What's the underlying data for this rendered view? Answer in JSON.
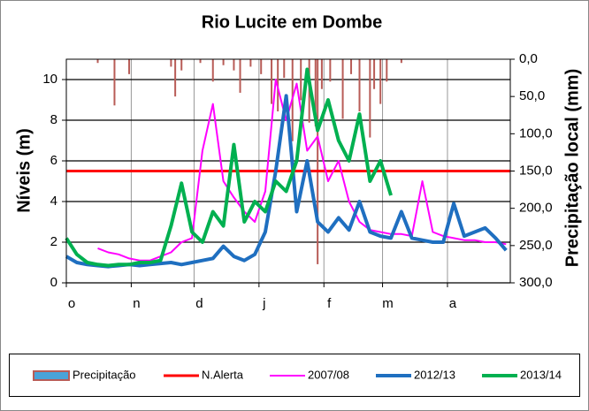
{
  "chart_data": {
    "type": "line",
    "title": "Rio Lucite em Dombe",
    "y_label": "Níveis (m)",
    "y2_label": "Precipitação local  (mm)",
    "xlim": [
      0,
      212
    ],
    "xticks": [
      {
        "value": 0,
        "label": "o"
      },
      {
        "value": 31,
        "label": "n"
      },
      {
        "value": 61,
        "label": "d"
      },
      {
        "value": 92,
        "label": "j"
      },
      {
        "value": 123,
        "label": "f"
      },
      {
        "value": 151,
        "label": "m"
      },
      {
        "value": 182,
        "label": "a"
      }
    ],
    "ylim": [
      0,
      11
    ],
    "yticks": [
      0,
      2,
      4,
      6,
      8,
      10
    ],
    "y2lim": [
      300,
      0
    ],
    "y2ticks": [
      {
        "value": 0,
        "label": "0,0"
      },
      {
        "value": 50,
        "label": "50,0"
      },
      {
        "value": 100,
        "label": "100,0"
      },
      {
        "value": 150,
        "label": "150,0"
      },
      {
        "value": 200,
        "label": "200,0"
      },
      {
        "value": 250,
        "label": "250,0"
      },
      {
        "value": 300,
        "label": "300,0"
      }
    ],
    "grid": true,
    "x": [
      0,
      5,
      10,
      15,
      20,
      25,
      30,
      35,
      40,
      45,
      50,
      55,
      60,
      65,
      70,
      75,
      80,
      85,
      90,
      95,
      100,
      105,
      110,
      115,
      120,
      125,
      130,
      135,
      140,
      145,
      150,
      155,
      160,
      165,
      170,
      175,
      180,
      185,
      190,
      195,
      200,
      205,
      210
    ],
    "bars": {
      "name": "Precipitação",
      "color": "#b85c57",
      "axis": "y2",
      "x": [
        15,
        23,
        30,
        50,
        52,
        55,
        64,
        70,
        75,
        80,
        83,
        88,
        93,
        98,
        101,
        104,
        108,
        112,
        116,
        119,
        120,
        122,
        126,
        132,
        136,
        140,
        145,
        147,
        150,
        153,
        160
      ],
      "values": [
        5,
        62,
        20,
        10,
        50,
        15,
        5,
        30,
        8,
        15,
        45,
        10,
        20,
        60,
        70,
        25,
        110,
        55,
        85,
        90,
        275,
        40,
        30,
        80,
        20,
        70,
        105,
        40,
        60,
        30,
        5
      ]
    },
    "alert": {
      "name": "N.Alerta",
      "color": "#ff0000",
      "x": [
        0,
        212
      ],
      "values": [
        5.5,
        5.5
      ]
    },
    "series": [
      {
        "name": "2007/08",
        "color": "#ff00ff",
        "values": [
          null,
          null,
          null,
          1.7,
          1.5,
          1.4,
          1.2,
          1.1,
          1.1,
          1.3,
          1.5,
          2.0,
          2.2,
          6.5,
          8.8,
          5.0,
          4.2,
          3.5,
          3.0,
          4.5,
          10.0,
          8.0,
          9.8,
          6.5,
          7.2,
          5.0,
          6.0,
          4.0,
          3.0,
          2.6,
          2.5,
          2.4,
          2.4,
          2.3,
          5.0,
          2.5,
          2.3,
          2.2,
          2.1,
          2.1,
          2.0,
          2.0,
          1.9
        ]
      },
      {
        "name": "2012/13",
        "color": "#1f6fc0",
        "values": [
          1.3,
          1.0,
          0.9,
          0.85,
          0.8,
          0.85,
          0.9,
          0.85,
          0.9,
          0.95,
          1.0,
          0.9,
          1.0,
          1.1,
          1.2,
          1.8,
          1.3,
          1.1,
          1.4,
          2.5,
          5.5,
          9.2,
          3.5,
          6.0,
          3.0,
          2.5,
          3.2,
          2.6,
          4.0,
          2.5,
          2.3,
          2.2,
          3.5,
          2.2,
          2.1,
          2.0,
          2.0,
          3.9,
          2.3,
          2.5,
          2.7,
          2.2,
          1.6
        ]
      },
      {
        "name": "2013/14",
        "color": "#00b050",
        "values": [
          2.2,
          1.4,
          1.0,
          0.9,
          0.85,
          0.9,
          0.9,
          1.0,
          1.0,
          1.1,
          2.8,
          4.9,
          2.5,
          2.0,
          3.5,
          2.8,
          6.8,
          3.0,
          4.0,
          3.5,
          5.0,
          4.5,
          6.0,
          10.5,
          7.5,
          9.0,
          7.0,
          6.0,
          8.3,
          5.0,
          6.0,
          4.3,
          null,
          null,
          null,
          null,
          null,
          null,
          null,
          null,
          null,
          null,
          null
        ]
      }
    ]
  }
}
